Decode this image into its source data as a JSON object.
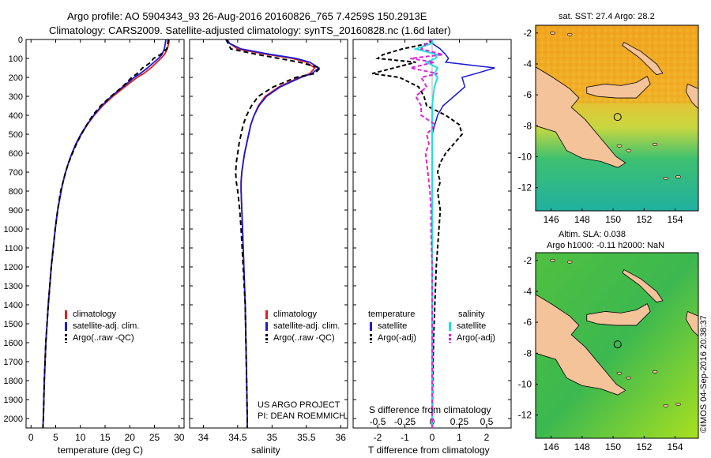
{
  "header": {
    "line1": "Argo profile: AO 5904343_93 26-Aug-2016 20160826_765 7.4259S 150.2913E",
    "line2": "Climatology: CARS2009. Satellite-adjusted climatology: synTS_20160828.nc (1.6d later)"
  },
  "colors": {
    "climatology": "#e0201a",
    "satellite": "#1a1ad6",
    "argo": "#000000",
    "sal_satellite": "#1ee0e0",
    "sal_argo": "#e020e0",
    "land": "#f5c39a"
  },
  "chart_data": [
    {
      "type": "line",
      "panel": "temperature",
      "xlabel": "temperature (deg C)",
      "xlim": [
        -1,
        31
      ],
      "xticks": [
        "0",
        "5",
        "10",
        "15",
        "20",
        "25",
        "30"
      ],
      "ylim": [
        0,
        2050
      ],
      "yticks": [
        "0",
        "100",
        "200",
        "300",
        "400",
        "500",
        "600",
        "700",
        "800",
        "900",
        "1000",
        "1100",
        "1200",
        "1300",
        "1400",
        "1500",
        "1600",
        "1700",
        "1800",
        "1900",
        "2000"
      ],
      "depth": [
        0,
        20,
        50,
        80,
        100,
        120,
        150,
        180,
        200,
        250,
        300,
        350,
        400,
        450,
        500,
        550,
        600,
        650,
        700,
        750,
        800,
        900,
        1000,
        1200,
        1400,
        1600,
        1800,
        2000,
        2050
      ],
      "series": [
        {
          "name": "climatology",
          "values": [
            28.0,
            27.9,
            27.6,
            27.0,
            26.3,
            25.5,
            24.3,
            22.8,
            21.5,
            19.0,
            16.6,
            14.5,
            12.8,
            11.4,
            10.2,
            9.2,
            8.3,
            7.6,
            7.0,
            6.5,
            6.1,
            5.4,
            4.9,
            4.1,
            3.5,
            3.0,
            2.7,
            2.5,
            2.4
          ]
        },
        {
          "name": "satellite-adj. clim.",
          "values": [
            27.3,
            27.2,
            27.0,
            26.5,
            25.8,
            24.9,
            23.6,
            22.1,
            20.9,
            18.6,
            16.3,
            14.3,
            12.7,
            11.3,
            10.1,
            9.1,
            8.3,
            7.6,
            7.0,
            6.5,
            6.1,
            5.4,
            4.9,
            4.1,
            3.5,
            3.0,
            2.7,
            2.5,
            2.4
          ]
        },
        {
          "name": "Argo(..raw -QC)",
          "values": [
            27.8,
            27.7,
            27.5,
            26.2,
            24.8,
            24.3,
            22.6,
            21.5,
            20.4,
            18.5,
            16.2,
            14.1,
            12.5,
            11.3,
            10.2,
            9.2,
            8.4,
            7.6,
            7.0,
            6.5,
            6.0,
            5.4,
            4.9,
            4.1,
            3.5,
            3.0,
            2.7,
            2.5,
            2.4
          ]
        }
      ],
      "legend": [
        "climatology",
        "satellite-adj. clim.",
        "Argo(..raw -QC)"
      ]
    },
    {
      "type": "line",
      "panel": "salinity",
      "xlabel": "salinity",
      "xlim": [
        33.8,
        36.1
      ],
      "xticks": [
        "34",
        "34.5",
        "35",
        "35.5",
        "36"
      ],
      "ylim": [
        0,
        2050
      ],
      "depth": [
        0,
        20,
        50,
        80,
        100,
        120,
        150,
        180,
        200,
        250,
        300,
        350,
        400,
        450,
        500,
        550,
        600,
        650,
        700,
        750,
        800,
        900,
        1000,
        1200,
        1400,
        1600,
        1800,
        2000,
        2050
      ],
      "series": [
        {
          "name": "climatology",
          "values": [
            34.35,
            34.38,
            34.5,
            34.95,
            35.3,
            35.5,
            35.62,
            35.55,
            35.4,
            35.1,
            34.9,
            34.8,
            34.74,
            34.69,
            34.66,
            34.63,
            34.6,
            34.58,
            34.56,
            34.55,
            34.55,
            34.56,
            34.57,
            34.59,
            34.61,
            34.62,
            34.63,
            34.64,
            34.64
          ]
        },
        {
          "name": "satellite-adj. clim.",
          "values": [
            34.35,
            34.38,
            34.55,
            35.0,
            35.35,
            35.55,
            35.68,
            35.58,
            35.42,
            35.12,
            34.92,
            34.81,
            34.74,
            34.69,
            34.66,
            34.63,
            34.6,
            34.58,
            34.56,
            34.55,
            34.55,
            34.56,
            34.57,
            34.59,
            34.61,
            34.62,
            34.63,
            34.64,
            34.64
          ]
        },
        {
          "name": "Argo(..raw -QC)",
          "values": [
            34.33,
            34.36,
            34.4,
            34.8,
            35.1,
            35.4,
            35.7,
            35.62,
            35.35,
            35.02,
            34.8,
            34.7,
            34.63,
            34.58,
            34.55,
            34.52,
            34.5,
            34.48,
            34.47,
            34.48,
            34.5,
            34.53,
            34.55,
            34.58,
            34.61,
            34.62,
            34.63,
            34.64,
            34.64
          ]
        }
      ],
      "legend": [
        "climatology",
        "satellite-adj. clim.",
        "Argo(..raw -QC)"
      ]
    },
    {
      "type": "line",
      "panel": "difference",
      "xlabel": "T difference from climatology",
      "xlabel_top": "S difference from climatology",
      "xlim_T": [
        -2.9,
        2.9
      ],
      "xticks_T": [
        "-2",
        "-1",
        "0",
        "1",
        "2"
      ],
      "xticks_S": [
        "-0.5",
        "-0.25",
        "0",
        "0.25",
        "0.5"
      ],
      "S_scale": 4,
      "ylim": [
        0,
        2050
      ],
      "depth": [
        0,
        20,
        50,
        80,
        100,
        120,
        150,
        180,
        200,
        250,
        300,
        350,
        400,
        450,
        500,
        550,
        600,
        650,
        700,
        750,
        800,
        900,
        1000,
        1200,
        1400,
        1600,
        1800,
        2000,
        2050
      ],
      "series": [
        {
          "name": "temperature satellite",
          "kind": "T",
          "values": [
            0,
            0,
            0.3,
            0.5,
            0.6,
            0.5,
            2.3,
            1.6,
            1.1,
            1.2,
            0.8,
            0.4,
            0.2,
            0.1,
            0,
            0,
            0,
            0,
            0,
            0,
            0,
            0,
            0,
            0,
            0,
            0,
            0,
            0,
            0
          ]
        },
        {
          "name": "temperature Argo(-adj)",
          "kind": "T",
          "values": [
            0,
            -0.1,
            -1.1,
            -1.8,
            -2.0,
            -0.6,
            -1.4,
            -2.2,
            -1.2,
            -0.5,
            -0.3,
            -0.2,
            0.5,
            1.0,
            1.1,
            0.8,
            0.5,
            0.3,
            0.2,
            0.3,
            0.2,
            0.3,
            0.25,
            0.15,
            0.1,
            0.05,
            0.02,
            0,
            0
          ]
        },
        {
          "name": "salinity satellite",
          "kind": "S",
          "values": [
            0,
            0,
            -0.15,
            0.05,
            0.03,
            -0.05,
            0.05,
            0.02,
            0.05,
            0.02,
            0.01,
            0,
            0,
            0,
            0,
            0,
            0,
            0,
            0,
            0,
            0,
            0,
            0,
            0,
            0,
            0,
            0,
            0,
            0
          ]
        },
        {
          "name": "salinity Argo(-adj)",
          "kind": "S",
          "values": [
            0,
            -0.05,
            -0.1,
            0.1,
            -0.2,
            0.02,
            -0.2,
            0.05,
            -0.1,
            -0.05,
            -0.15,
            -0.1,
            -0.1,
            0.03,
            -0.05,
            -0.03,
            -0.06,
            -0.05,
            -0.04,
            -0.03,
            -0.02,
            -0.01,
            -0.01,
            0,
            0,
            0,
            0,
            0,
            0
          ]
        }
      ],
      "legend": {
        "temperature_header": "temperature",
        "salinity_header": "salinity",
        "t_satellite": "satellite",
        "t_argo": "Argo(-adj)",
        "s_satellite": "satellite",
        "s_argo": "Argo(-adj)"
      }
    }
  ],
  "credits": {
    "project": "US ARGO PROJECT",
    "pi": "PI: DEAN ROEMMICH"
  },
  "maps": {
    "sst_title": "sat. SST: 27.4 Argo: 28.2",
    "sla_title1": "Altim. SLA: 0.038",
    "sla_title2": "Argo h1000: -0.11 h2000: NaN",
    "lon_ticks": [
      "146",
      "148",
      "150",
      "152",
      "154"
    ],
    "lat_ticks": [
      "-2",
      "-4",
      "-6",
      "-8",
      "-10",
      "-12"
    ],
    "lon_range": [
      145.0,
      155.5
    ],
    "lat_range": [
      -1.5,
      -13.5
    ],
    "float_position": {
      "lon": 150.29,
      "lat": -7.43
    }
  },
  "stamp": "©IMOS 04-Sep-2016 20:38:37"
}
